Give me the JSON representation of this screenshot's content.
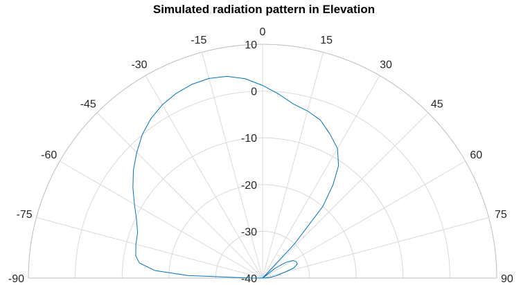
{
  "chart_data": {
    "type": "polar-line",
    "title": "Simulated radiation pattern in Elevation",
    "theta_unit": "degrees",
    "theta_range": [
      -90,
      90
    ],
    "theta_zero": "top",
    "theta_direction": "clockwise",
    "r_range": [
      -40,
      10
    ],
    "r_ticks": [
      10,
      0,
      -10,
      -20,
      -30,
      -40
    ],
    "theta_ticks": [
      -90,
      -75,
      -60,
      -45,
      -30,
      -15,
      0,
      15,
      30,
      45,
      60,
      75,
      90
    ],
    "grid": true,
    "series": [
      {
        "color": "#0072bd",
        "points": [
          [
            90,
            -40
          ],
          [
            85,
            -38.5
          ],
          [
            80,
            -37
          ],
          [
            75,
            -35
          ],
          [
            72,
            -33
          ],
          [
            68,
            -32
          ],
          [
            64,
            -32
          ],
          [
            60,
            -32.5
          ],
          [
            56,
            -34
          ],
          [
            52,
            -36.5
          ],
          [
            47,
            -40
          ],
          [
            45,
            -40
          ],
          [
            43,
            -30
          ],
          [
            40,
            -20
          ],
          [
            37,
            -15
          ],
          [
            34,
            -11
          ],
          [
            30,
            -8
          ],
          [
            25,
            -6
          ],
          [
            20,
            -4
          ],
          [
            15,
            -3
          ],
          [
            10,
            -2.2
          ],
          [
            5,
            -0.5
          ],
          [
            0,
            1.2
          ],
          [
            -5,
            2.8
          ],
          [
            -10,
            3.8
          ],
          [
            -15,
            4.2
          ],
          [
            -20,
            4.1
          ],
          [
            -25,
            3.6
          ],
          [
            -30,
            2.8
          ],
          [
            -35,
            1.6
          ],
          [
            -40,
            0
          ],
          [
            -45,
            -2
          ],
          [
            -50,
            -4
          ],
          [
            -55,
            -6.2
          ],
          [
            -60,
            -8.4
          ],
          [
            -65,
            -10.3
          ],
          [
            -70,
            -11.6
          ],
          [
            -75,
            -12
          ],
          [
            -80,
            -12.5
          ],
          [
            -83,
            -13.5
          ],
          [
            -86,
            -17
          ],
          [
            -88,
            -24
          ],
          [
            -89.5,
            -37
          ],
          [
            -90,
            -40
          ]
        ]
      }
    ]
  }
}
